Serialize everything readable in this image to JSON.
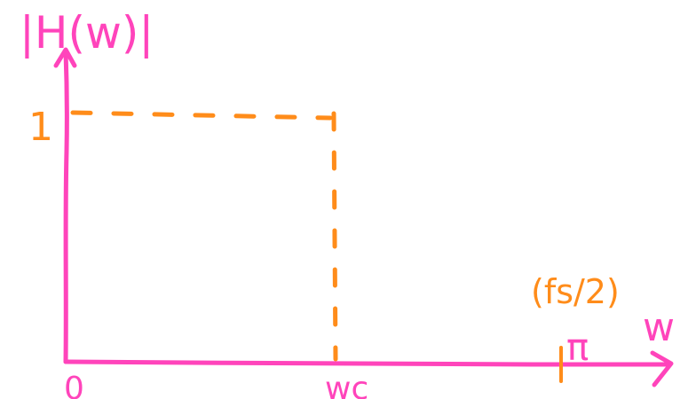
{
  "colors": {
    "axis": "#ff44bb",
    "annotation": "#ff8c1a"
  },
  "labels": {
    "y_axis": "|H(w)|",
    "x_axis": "w",
    "one": "1",
    "origin": "0",
    "cutoff": "wc",
    "pi": "π",
    "nyquist": "(fs/2)"
  }
}
